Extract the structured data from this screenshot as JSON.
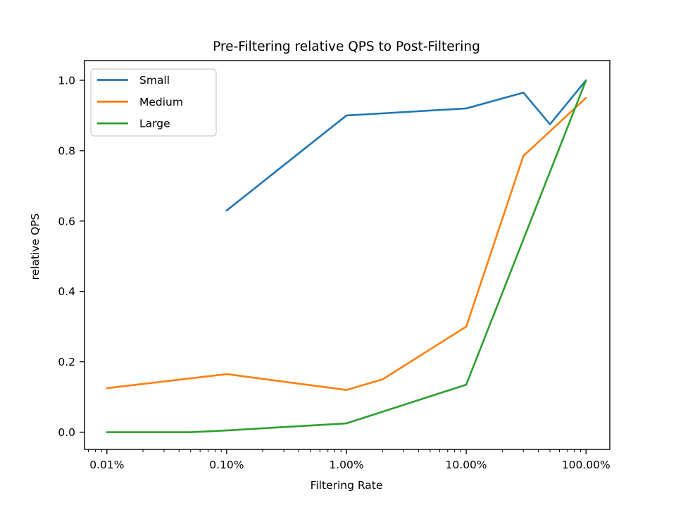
{
  "chart_data": {
    "type": "line",
    "title": "Pre-Filtering relative QPS to Post-Filtering",
    "xlabel": "Filtering Rate",
    "ylabel": "relative QPS",
    "x_scale": "log",
    "grid": false,
    "legend_position": "upper left",
    "x_tick_labels": [
      "0.01%",
      "0.10%",
      "1.00%",
      "10.00%",
      "100.00%"
    ],
    "x_tick_values_percent": [
      0.01,
      0.1,
      1,
      10,
      100
    ],
    "y_tick_labels": [
      "0.0",
      "0.2",
      "0.4",
      "0.6",
      "0.8",
      "1.0"
    ],
    "y_tick_values": [
      0.0,
      0.2,
      0.4,
      0.6,
      0.8,
      1.0
    ],
    "xlim_percent": [
      0.0065,
      158
    ],
    "ylim": [
      -0.049,
      1.056
    ],
    "series": [
      {
        "name": "Small",
        "color": "#1f77b4",
        "x_percent": [
          0.1,
          1,
          10,
          30,
          50,
          100
        ],
        "y": [
          0.63,
          0.9,
          0.92,
          0.965,
          0.875,
          1.0
        ]
      },
      {
        "name": "Medium",
        "color": "#ff7f0e",
        "x_percent": [
          0.01,
          0.1,
          1,
          2,
          10,
          30,
          100
        ],
        "y": [
          0.125,
          0.165,
          0.12,
          0.15,
          0.3,
          0.785,
          0.95
        ]
      },
      {
        "name": "Large",
        "color": "#2ca02c",
        "x_percent": [
          0.01,
          0.05,
          0.1,
          1,
          10,
          100
        ],
        "y": [
          0.0,
          0.0,
          0.005,
          0.025,
          0.135,
          1.0
        ]
      }
    ]
  }
}
